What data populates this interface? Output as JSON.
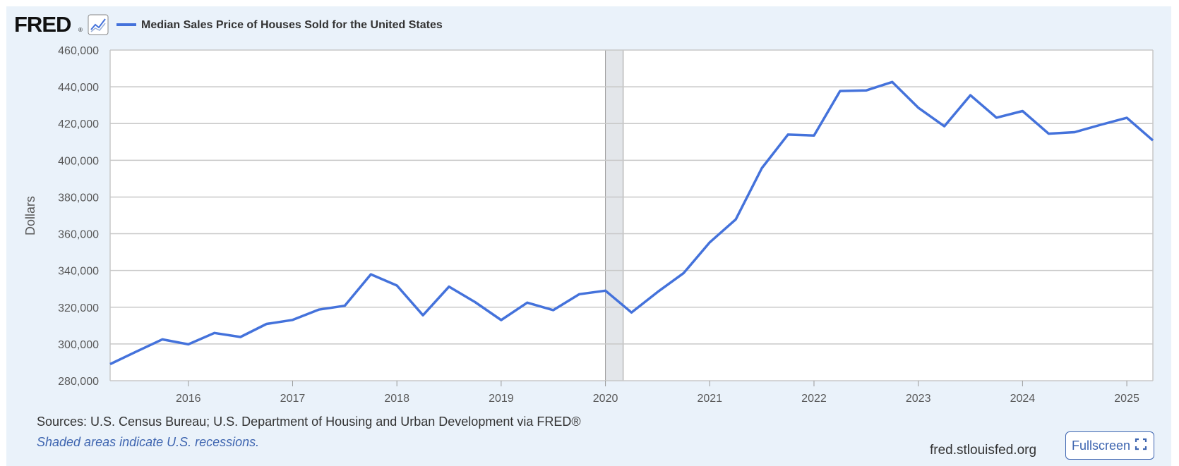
{
  "logo": {
    "text": "FRED",
    "registered": "®"
  },
  "footer": {
    "sources": "Sources: U.S. Census Bureau; U.S. Department of Housing and Urban Development via FRED®",
    "recession_note": "Shaded areas indicate U.S. recessions.",
    "site": "fred.stlouisfed.org",
    "fullscreen_label": "Fullscreen"
  },
  "icons": {
    "logo_graph": "line-graph-icon",
    "fullscreen": "expand-icon"
  },
  "colors": {
    "background": "#eaf2fa",
    "plot_background": "#ffffff",
    "series": "#4472db",
    "grid": "#c8c8c8",
    "recession": "#e3e6ea",
    "link": "#3e65b0"
  },
  "chart_data": {
    "type": "line",
    "title": "",
    "xlabel": "",
    "ylabel": "Dollars",
    "ylim": [
      280000,
      460000
    ],
    "yticks": [
      280000,
      300000,
      320000,
      340000,
      360000,
      380000,
      400000,
      420000,
      440000,
      460000
    ],
    "ytick_labels": [
      "280,000",
      "300,000",
      "320,000",
      "340,000",
      "360,000",
      "380,000",
      "400,000",
      "420,000",
      "440,000",
      "460,000"
    ],
    "xlim": [
      2015.25,
      2025.25
    ],
    "xticks": [
      2016,
      2017,
      2018,
      2019,
      2020,
      2021,
      2022,
      2023,
      2024,
      2025
    ],
    "xtick_labels": [
      "2016",
      "2017",
      "2018",
      "2019",
      "2020",
      "2021",
      "2022",
      "2023",
      "2024",
      "2025"
    ],
    "grid": true,
    "legend_position": "top-left",
    "recessions": [
      {
        "start": 2020.0,
        "end": 2020.17
      }
    ],
    "series": [
      {
        "name": "Median Sales Price of Houses Sold for the United States",
        "x": [
          2015.25,
          2015.5,
          2015.75,
          2016.0,
          2016.25,
          2016.5,
          2016.75,
          2017.0,
          2017.25,
          2017.5,
          2017.75,
          2018.0,
          2018.25,
          2018.5,
          2018.75,
          2019.0,
          2019.25,
          2019.5,
          2019.75,
          2020.0,
          2020.25,
          2020.5,
          2020.75,
          2021.0,
          2021.25,
          2021.5,
          2021.75,
          2022.0,
          2022.25,
          2022.5,
          2022.75,
          2023.0,
          2023.25,
          2023.5,
          2023.75,
          2024.0,
          2024.25,
          2024.5,
          2024.75,
          2025.0,
          2025.25
        ],
        "values": [
          289000,
          295800,
          302500,
          299800,
          306000,
          303800,
          310900,
          313100,
          318700,
          320800,
          337900,
          331800,
          315600,
          331200,
          322800,
          313000,
          322500,
          318400,
          327100,
          329000,
          317100,
          328300,
          338600,
          355300,
          367800,
          395700,
          414000,
          413500,
          437700,
          438000,
          442600,
          428600,
          418500,
          435400,
          423200,
          426800,
          414500,
          415300,
          419300,
          423100,
          410800
        ]
      }
    ]
  }
}
